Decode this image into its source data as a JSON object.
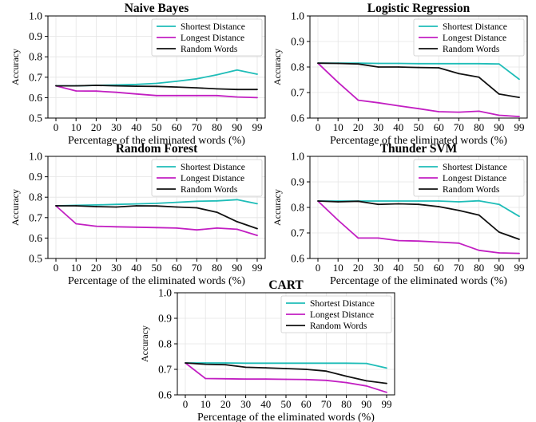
{
  "colors": {
    "shortest": "#1fbdb8",
    "longest": "#c21fc2",
    "random": "#111111",
    "grid": "#e4e4e4",
    "axis": "#000000"
  },
  "chart_data": [
    {
      "type": "line",
      "title": "Naive Bayes",
      "xlabel": "Percentage of the eliminated words (%)",
      "ylabel": "Accuracy",
      "ylim": [
        0.5,
        1.0
      ],
      "yticks": [
        "0.5",
        "0.6",
        "0.7",
        "0.8",
        "0.9",
        "1.0"
      ],
      "x": [
        "0",
        "10",
        "20",
        "30",
        "40",
        "50",
        "60",
        "70",
        "80",
        "90",
        "99"
      ],
      "grid": true,
      "legend": "top-right",
      "series": [
        {
          "name": "Shortest Distance",
          "key": "shortest",
          "values": [
            0.658,
            0.658,
            0.66,
            0.662,
            0.665,
            0.67,
            0.68,
            0.692,
            0.712,
            0.735,
            0.715
          ]
        },
        {
          "name": "Longest Distance",
          "key": "longest",
          "values": [
            0.658,
            0.633,
            0.632,
            0.626,
            0.618,
            0.61,
            0.61,
            0.61,
            0.61,
            0.603,
            0.6
          ]
        },
        {
          "name": "Random Words",
          "key": "random",
          "values": [
            0.658,
            0.658,
            0.66,
            0.658,
            0.656,
            0.655,
            0.652,
            0.648,
            0.643,
            0.64,
            0.64
          ]
        }
      ]
    },
    {
      "type": "line",
      "title": "Logistic Regression",
      "xlabel": "Percentage of the eliminated words (%)",
      "ylabel": "Accuracy",
      "ylim": [
        0.6,
        1.0
      ],
      "yticks": [
        "0.6",
        "0.7",
        "0.8",
        "0.9",
        "1.0"
      ],
      "x": [
        "0",
        "10",
        "20",
        "30",
        "40",
        "50",
        "60",
        "70",
        "80",
        "90",
        "99"
      ],
      "grid": true,
      "legend": "top-right",
      "series": [
        {
          "name": "Shortest Distance",
          "key": "shortest",
          "values": [
            0.815,
            0.815,
            0.815,
            0.814,
            0.814,
            0.813,
            0.813,
            0.813,
            0.813,
            0.812,
            0.752
          ]
        },
        {
          "name": "Longest Distance",
          "key": "longest",
          "values": [
            0.815,
            0.74,
            0.67,
            0.66,
            0.648,
            0.637,
            0.625,
            0.623,
            0.627,
            0.611,
            0.606
          ]
        },
        {
          "name": "Random Words",
          "key": "random",
          "values": [
            0.815,
            0.814,
            0.812,
            0.8,
            0.8,
            0.798,
            0.797,
            0.774,
            0.76,
            0.694,
            0.681
          ]
        }
      ]
    },
    {
      "type": "line",
      "title": "Random Forest",
      "xlabel": "Percentage of the eliminated words (%)",
      "ylabel": "Accuracy",
      "ylim": [
        0.5,
        1.0
      ],
      "yticks": [
        "0.5",
        "0.6",
        "0.7",
        "0.8",
        "0.9",
        "1.0"
      ],
      "x": [
        "0",
        "10",
        "20",
        "30",
        "40",
        "50",
        "60",
        "70",
        "80",
        "90",
        "99"
      ],
      "grid": true,
      "legend": "top-right",
      "series": [
        {
          "name": "Shortest Distance",
          "key": "shortest",
          "values": [
            0.758,
            0.76,
            0.762,
            0.765,
            0.767,
            0.77,
            0.775,
            0.78,
            0.782,
            0.788,
            0.768
          ]
        },
        {
          "name": "Longest Distance",
          "key": "longest",
          "values": [
            0.758,
            0.67,
            0.658,
            0.655,
            0.653,
            0.651,
            0.649,
            0.64,
            0.649,
            0.643,
            0.613
          ]
        },
        {
          "name": "Random Words",
          "key": "random",
          "values": [
            0.758,
            0.758,
            0.754,
            0.752,
            0.758,
            0.757,
            0.752,
            0.748,
            0.726,
            0.68,
            0.646
          ]
        }
      ]
    },
    {
      "type": "line",
      "title": "Thunder SVM",
      "xlabel": "Percentage of the eliminated words (%)",
      "ylabel": "Accuracy",
      "ylim": [
        0.6,
        1.0
      ],
      "yticks": [
        "0.6",
        "0.7",
        "0.8",
        "0.9",
        "1.0"
      ],
      "x": [
        "0",
        "10",
        "20",
        "30",
        "40",
        "50",
        "60",
        "70",
        "80",
        "90",
        "99"
      ],
      "grid": true,
      "legend": "top-right",
      "series": [
        {
          "name": "Shortest Distance",
          "key": "shortest",
          "values": [
            0.825,
            0.825,
            0.825,
            0.825,
            0.825,
            0.825,
            0.825,
            0.822,
            0.826,
            0.812,
            0.765
          ]
        },
        {
          "name": "Longest Distance",
          "key": "longest",
          "values": [
            0.825,
            0.75,
            0.68,
            0.68,
            0.67,
            0.668,
            0.664,
            0.66,
            0.632,
            0.622,
            0.62
          ]
        },
        {
          "name": "Random Words",
          "key": "random",
          "values": [
            0.825,
            0.822,
            0.824,
            0.812,
            0.814,
            0.812,
            0.803,
            0.788,
            0.77,
            0.703,
            0.675
          ]
        }
      ]
    },
    {
      "type": "line",
      "title": "CART",
      "xlabel": "Percentage of the eliminated words (%)",
      "ylabel": "Accuracy",
      "ylim": [
        0.6,
        1.0
      ],
      "yticks": [
        "0.6",
        "0.7",
        "0.8",
        "0.9",
        "1.0"
      ],
      "x": [
        "0",
        "10",
        "20",
        "30",
        "40",
        "50",
        "60",
        "70",
        "80",
        "90",
        "99"
      ],
      "grid": true,
      "legend": "top-right",
      "series": [
        {
          "name": "Shortest Distance",
          "key": "shortest",
          "values": [
            0.725,
            0.725,
            0.725,
            0.724,
            0.724,
            0.724,
            0.724,
            0.724,
            0.724,
            0.723,
            0.705
          ]
        },
        {
          "name": "Longest Distance",
          "key": "longest",
          "values": [
            0.725,
            0.664,
            0.663,
            0.662,
            0.662,
            0.661,
            0.66,
            0.657,
            0.648,
            0.635,
            0.61
          ]
        },
        {
          "name": "Random Words",
          "key": "random",
          "values": [
            0.725,
            0.72,
            0.718,
            0.708,
            0.706,
            0.703,
            0.7,
            0.693,
            0.673,
            0.655,
            0.645
          ]
        }
      ]
    }
  ]
}
